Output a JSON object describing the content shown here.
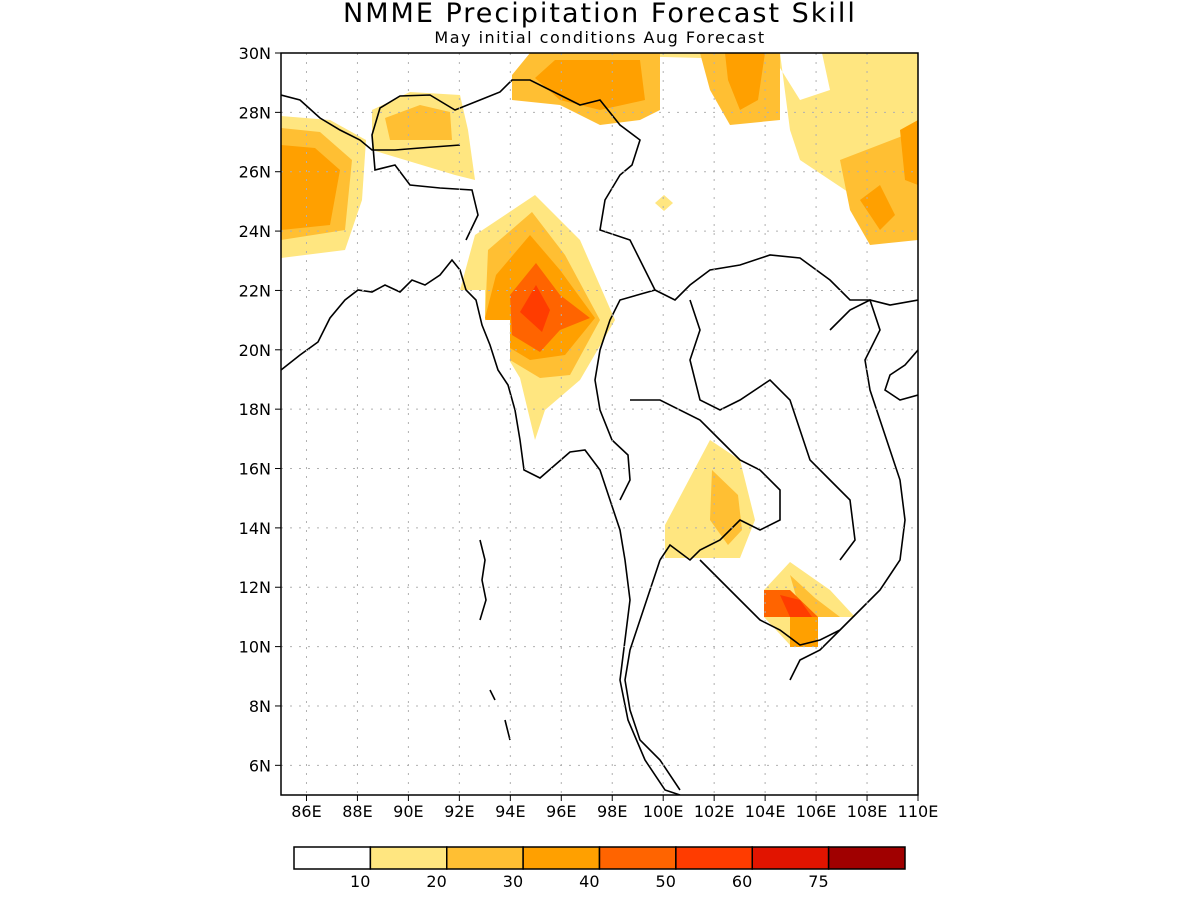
{
  "title": "NMME Precipitation Forecast Skill",
  "subtitle": "May initial conditions  Aug Forecast",
  "map": {
    "lon_range": [
      85,
      110
    ],
    "lat_range": [
      5,
      30
    ],
    "lon_ticks": [
      86,
      88,
      90,
      92,
      94,
      96,
      98,
      100,
      102,
      104,
      106,
      108,
      110
    ],
    "lat_ticks": [
      6,
      8,
      10,
      12,
      14,
      16,
      18,
      20,
      22,
      24,
      26,
      28,
      30
    ],
    "lon_tick_labels": [
      "86E",
      "88E",
      "90E",
      "92E",
      "94E",
      "96E",
      "98E",
      "100E",
      "102E",
      "104E",
      "106E",
      "108E",
      "110E"
    ],
    "lat_tick_labels": [
      "6N",
      "8N",
      "10N",
      "12N",
      "14N",
      "16N",
      "18N",
      "20N",
      "22N",
      "24N",
      "26N",
      "28N",
      "30N"
    ],
    "grid": "dotted"
  },
  "colorbar": {
    "colors": [
      "#ffffff",
      "#ffe680",
      "#ffbf33",
      "#ffa000",
      "#ff6400",
      "#ff3c00",
      "#e11400",
      "#a00000"
    ],
    "labels": [
      "10",
      "20",
      "30",
      "40",
      "50",
      "60",
      "75"
    ]
  }
}
